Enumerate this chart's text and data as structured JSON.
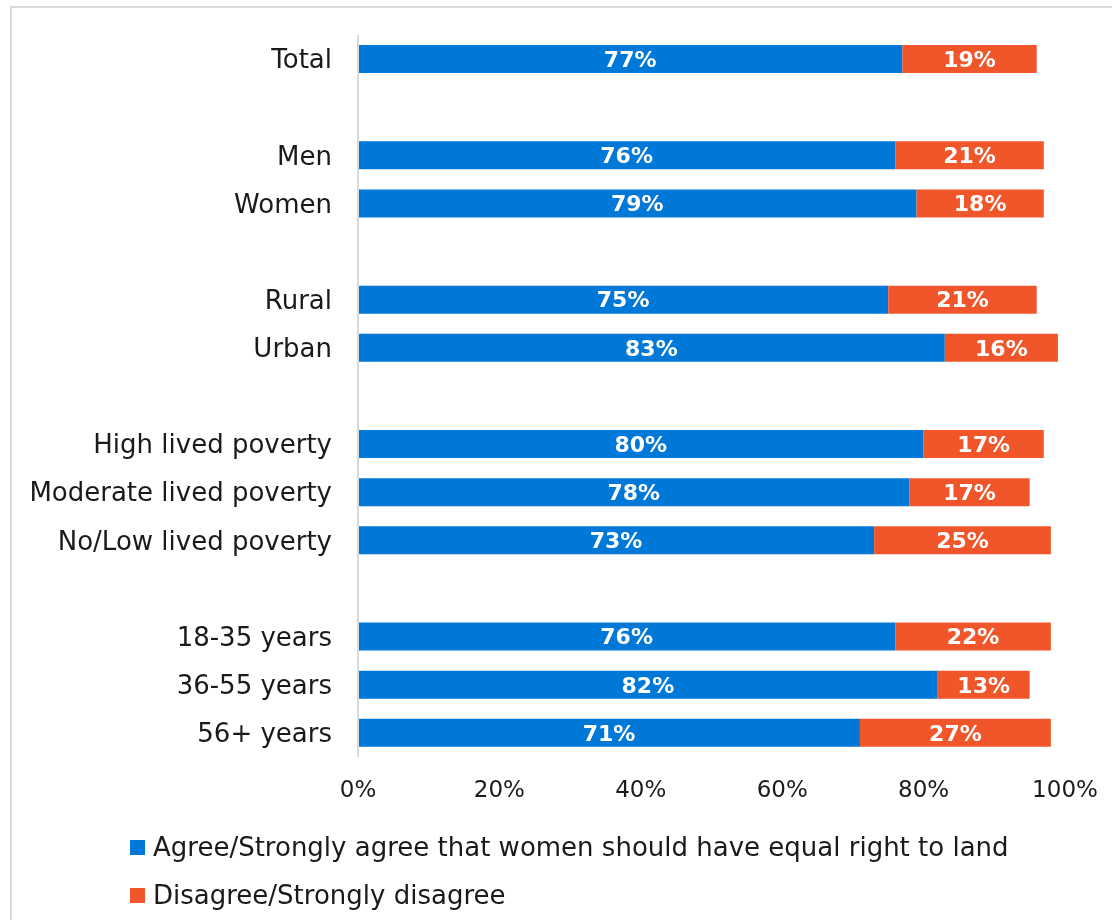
{
  "chart_data": {
    "type": "bar",
    "orientation": "horizontal",
    "stacked": true,
    "categories": [
      "Total",
      null,
      "Men",
      "Women",
      null,
      "Rural",
      "Urban",
      null,
      "High lived poverty",
      "Moderate lived poverty",
      "No/Low lived poverty",
      null,
      "18-35 years",
      "36-55 years",
      "56+ years"
    ],
    "series": [
      {
        "name": "Agree/Strongly agree that women should have equal right to land",
        "color": "#0078d7",
        "values": [
          77,
          null,
          76,
          79,
          null,
          75,
          83,
          null,
          80,
          78,
          73,
          null,
          76,
          82,
          71
        ],
        "value_labels": [
          "77%",
          null,
          "76%",
          "79%",
          null,
          "75%",
          "83%",
          null,
          "80%",
          "78%",
          "73%",
          null,
          "76%",
          "82%",
          "71%"
        ]
      },
      {
        "name": "Disagree/Strongly disagree",
        "color": "#f0562a",
        "values": [
          19,
          null,
          21,
          18,
          null,
          21,
          16,
          null,
          17,
          17,
          25,
          null,
          22,
          13,
          27
        ],
        "value_labels": [
          "19%",
          null,
          "21%",
          "18%",
          null,
          "21%",
          "16%",
          null,
          "17%",
          "17%",
          "25%",
          null,
          "22%",
          "13%",
          "27%"
        ]
      }
    ],
    "xlim": [
      0,
      100
    ],
    "xticks": [
      {
        "value": 0,
        "label": "0%"
      },
      {
        "value": 20,
        "label": "20%"
      },
      {
        "value": 40,
        "label": "40%"
      },
      {
        "value": 60,
        "label": "60%"
      },
      {
        "value": 80,
        "label": "80%"
      },
      {
        "value": 100,
        "label": "100%"
      }
    ],
    "legend": "bottom left"
  }
}
